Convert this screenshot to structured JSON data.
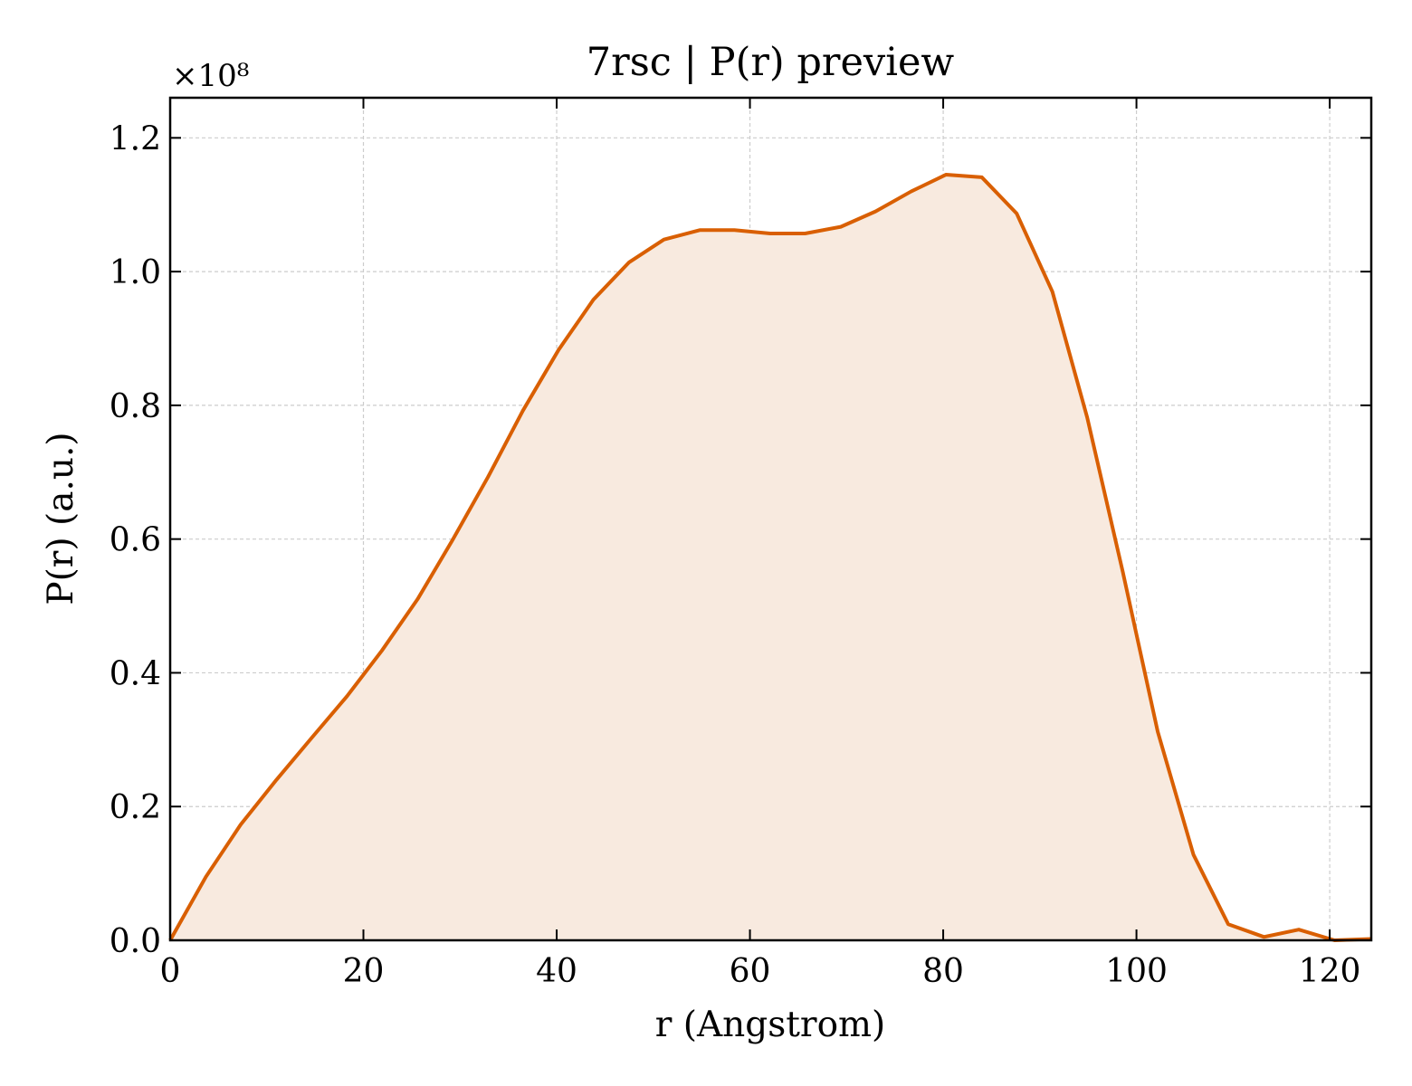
{
  "chart_data": {
    "type": "area",
    "title": "7rsc | P(r) preview",
    "xlabel": "r (Angstrom)",
    "ylabel": "P(r) (a.u.)",
    "y_multiplier_label": "×10⁸",
    "xlim": [
      0,
      124.3
    ],
    "ylim": [
      0,
      1.26
    ],
    "xticks": [
      0,
      20,
      40,
      60,
      80,
      100,
      120
    ],
    "yticks": [
      0.0,
      0.2,
      0.4,
      0.6,
      0.8,
      1.0,
      1.2
    ],
    "xtick_labels": [
      "0",
      "20",
      "40",
      "60",
      "80",
      "100",
      "120"
    ],
    "ytick_labels": [
      "0.0",
      "0.2",
      "0.4",
      "0.6",
      "0.8",
      "1.0",
      "1.2"
    ],
    "grid": true,
    "colors": {
      "line": "#d95f02",
      "fill": "#f8eadf"
    },
    "series": [
      {
        "x": [
          0,
          3.7,
          7.3,
          11.0,
          14.6,
          18.3,
          21.9,
          25.6,
          29.2,
          32.9,
          36.5,
          40.2,
          43.8,
          47.5,
          51.1,
          54.8,
          58.4,
          62.1,
          65.7,
          69.4,
          73.0,
          76.7,
          80.3,
          84.0,
          87.6,
          91.3,
          94.9,
          98.6,
          102.2,
          105.9,
          109.5,
          113.2,
          116.8,
          120.5,
          124.3
        ],
        "y": [
          0.0,
          0.095,
          0.173,
          0.24,
          0.302,
          0.365,
          0.433,
          0.51,
          0.598,
          0.693,
          0.792,
          0.883,
          0.958,
          1.014,
          1.048,
          1.062,
          1.062,
          1.057,
          1.057,
          1.067,
          1.09,
          1.12,
          1.145,
          1.141,
          1.087,
          0.97,
          0.782,
          0.55,
          0.312,
          0.128,
          0.024,
          0.005,
          0.016,
          0.0,
          0.002
        ]
      }
    ]
  }
}
